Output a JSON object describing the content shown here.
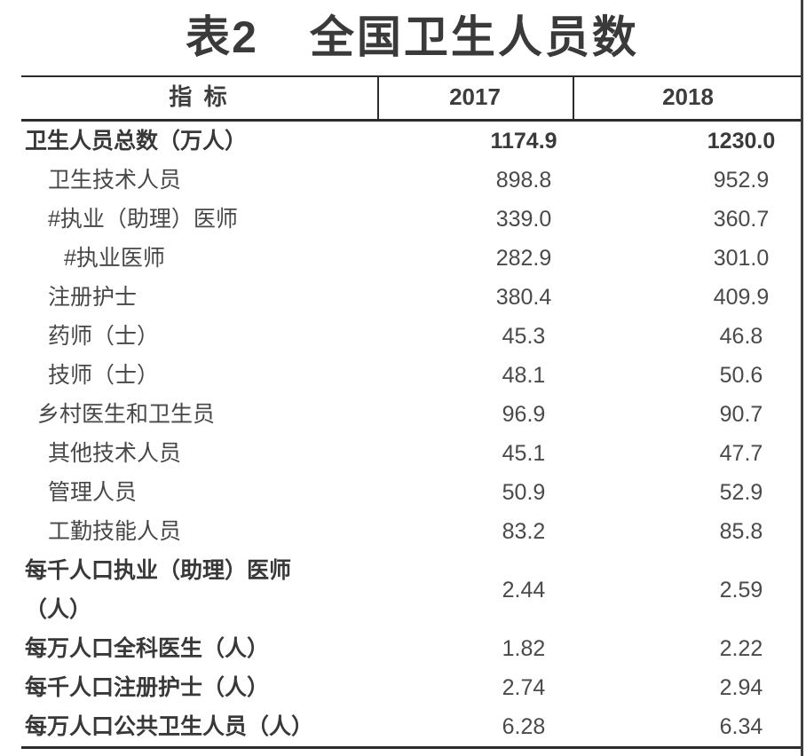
{
  "title": {
    "prefix": "表2",
    "main": "全国卫生人员数"
  },
  "header": {
    "indicator": "指 标",
    "col_2017": "2017",
    "col_2018": "2018"
  },
  "rows": [
    {
      "label": "卫生人员总数（万人）",
      "v2017": "1174.9",
      "v2018": "1230.0",
      "level": "l0",
      "emphasis": true,
      "emphasis_values": true,
      "two_line": false
    },
    {
      "label": "卫生技术人员",
      "v2017": "898.8",
      "v2018": "952.9",
      "level": "l1",
      "emphasis": false,
      "emphasis_values": false,
      "two_line": false
    },
    {
      "label": "#执业（助理）医师",
      "v2017": "339.0",
      "v2018": "360.7",
      "level": "l1",
      "emphasis": false,
      "emphasis_values": false,
      "two_line": false
    },
    {
      "label": "#执业医师",
      "v2017": "282.9",
      "v2018": "301.0",
      "level": "l2",
      "emphasis": false,
      "emphasis_values": false,
      "two_line": false
    },
    {
      "label": "注册护士",
      "v2017": "380.4",
      "v2018": "409.9",
      "level": "l1",
      "emphasis": false,
      "emphasis_values": false,
      "two_line": false
    },
    {
      "label": "药师（士）",
      "v2017": "45.3",
      "v2018": "46.8",
      "level": "l1",
      "emphasis": false,
      "emphasis_values": false,
      "two_line": false
    },
    {
      "label": "技师（士）",
      "v2017": "48.1",
      "v2018": "50.6",
      "level": "l1",
      "emphasis": false,
      "emphasis_values": false,
      "two_line": false
    },
    {
      "label": "乡村医生和卫生员",
      "v2017": "96.9",
      "v2018": "90.7",
      "level": "mid",
      "emphasis": false,
      "emphasis_values": false,
      "two_line": false
    },
    {
      "label": "其他技术人员",
      "v2017": "45.1",
      "v2018": "47.7",
      "level": "l1",
      "emphasis": false,
      "emphasis_values": false,
      "two_line": false
    },
    {
      "label": "管理人员",
      "v2017": "50.9",
      "v2018": "52.9",
      "level": "l1",
      "emphasis": false,
      "emphasis_values": false,
      "two_line": false
    },
    {
      "label": "工勤技能人员",
      "v2017": "83.2",
      "v2018": "85.8",
      "level": "l1",
      "emphasis": false,
      "emphasis_values": false,
      "two_line": false
    },
    {
      "label": "每千人口执业（助理）医师（人）",
      "v2017": "2.44",
      "v2018": "2.59",
      "level": "l0",
      "emphasis": true,
      "emphasis_values": false,
      "two_line": true
    },
    {
      "label": "每万人口全科医生（人）",
      "v2017": "1.82",
      "v2018": "2.22",
      "level": "l0",
      "emphasis": true,
      "emphasis_values": false,
      "two_line": false
    },
    {
      "label": "每千人口注册护士（人）",
      "v2017": "2.74",
      "v2018": "2.94",
      "level": "l0",
      "emphasis": true,
      "emphasis_values": false,
      "two_line": false
    },
    {
      "label": "每万人口公共卫生人员（人）",
      "v2017": "6.28",
      "v2018": "6.34",
      "level": "l0",
      "emphasis": true,
      "emphasis_values": false,
      "two_line": false
    }
  ],
  "colors": {
    "text": "#474747",
    "emphasis_text": "#383838",
    "rule": "#2c2c2c",
    "background": "#ffffff"
  }
}
